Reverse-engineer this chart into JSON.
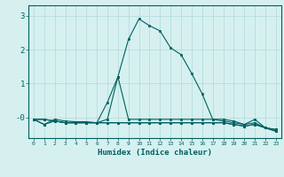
{
  "xlabel": "Humidex (Indice chaleur)",
  "ylabel": "",
  "background_color": "#d6f0f0",
  "line_color": "#006060",
  "grid_color": "#b0d8d8",
  "x_values": [
    0,
    1,
    2,
    3,
    4,
    5,
    6,
    7,
    8,
    9,
    10,
    11,
    12,
    13,
    14,
    15,
    16,
    17,
    18,
    19,
    20,
    21,
    22,
    23
  ],
  "series": [
    [
      -0.05,
      -0.2,
      -0.05,
      -0.1,
      -0.12,
      -0.12,
      -0.15,
      0.45,
      1.2,
      2.3,
      2.9,
      2.7,
      2.55,
      2.05,
      1.85,
      1.3,
      0.7,
      -0.05,
      -0.05,
      -0.1,
      -0.2,
      -0.05,
      -0.3,
      -0.35
    ],
    [
      -0.05,
      -0.2,
      -0.1,
      -0.15,
      -0.15,
      -0.15,
      -0.15,
      -0.05,
      1.2,
      -0.05,
      -0.05,
      -0.05,
      -0.05,
      -0.05,
      -0.05,
      -0.05,
      -0.05,
      -0.05,
      -0.1,
      -0.15,
      -0.2,
      -0.15,
      -0.3,
      -0.35
    ],
    [
      -0.05,
      -0.05,
      -0.1,
      -0.15,
      -0.15,
      -0.15,
      -0.15,
      -0.15,
      -0.15,
      -0.15,
      -0.15,
      -0.15,
      -0.15,
      -0.15,
      -0.15,
      -0.15,
      -0.15,
      -0.15,
      -0.15,
      -0.2,
      -0.25,
      -0.2,
      -0.3,
      -0.4
    ],
    [
      -0.05,
      -0.05,
      -0.1,
      -0.15,
      -0.15,
      -0.15,
      -0.15,
      -0.15,
      -0.15,
      -0.15,
      -0.15,
      -0.15,
      -0.15,
      -0.15,
      -0.15,
      -0.15,
      -0.15,
      -0.15,
      -0.15,
      -0.2,
      -0.25,
      -0.2,
      -0.3,
      -0.4
    ]
  ],
  "ylim": [
    -0.6,
    3.3
  ],
  "yticks": [
    0,
    1,
    2,
    3
  ],
  "ytick_labels": [
    "-0",
    "1",
    "2",
    "3"
  ],
  "xtick_labels": [
    "0",
    "1",
    "2",
    "3",
    "4",
    "5",
    "6",
    "7",
    "8",
    "9",
    "10",
    "11",
    "12",
    "13",
    "14",
    "15",
    "16",
    "17",
    "18",
    "19",
    "20",
    "21",
    "22",
    "23"
  ]
}
